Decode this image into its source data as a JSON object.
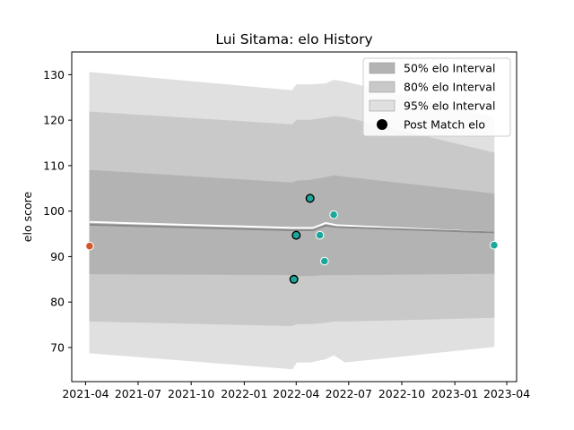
{
  "chart_data": {
    "type": "scatter",
    "title": "Lui Sitama: elo History",
    "xlabel": "",
    "ylabel": "elo score",
    "xlim": [
      "2021-03-08",
      "2023-04-18"
    ],
    "ylim": [
      62.5,
      135
    ],
    "x_ticks": [
      "2021-04",
      "2021-07",
      "2021-10",
      "2022-01",
      "2022-04",
      "2022-07",
      "2022-10",
      "2023-01",
      "2023-04"
    ],
    "y_ticks": [
      70,
      80,
      90,
      100,
      110,
      120,
      130
    ],
    "grid": false,
    "legend_position": "top-right",
    "legend": [
      {
        "label": "50% elo Interval",
        "color": "#b3b3b3"
      },
      {
        "label": "80% elo Interval",
        "color": "#c9c9c9"
      },
      {
        "label": "95% elo Interval",
        "color": "#e0e0e0"
      },
      {
        "label": "Post Match elo",
        "color": "#000000"
      }
    ],
    "bands": {
      "x": [
        "2021-04-08",
        "2022-03-25",
        "2022-04-02",
        "2022-04-25",
        "2022-05-22",
        "2022-06-05",
        "2022-06-25",
        "2023-03-10"
      ],
      "p95_upper": [
        130.5,
        126.5,
        127.8,
        127.8,
        128.0,
        128.8,
        128.4,
        120.6
      ],
      "p80_upper": [
        121.8,
        119.0,
        120.0,
        120.0,
        120.5,
        120.8,
        120.6,
        112.8
      ],
      "p50_upper": [
        109.0,
        106.2,
        106.6,
        106.8,
        107.4,
        107.8,
        107.5,
        103.8
      ],
      "p50_lower": [
        86.2,
        86.0,
        85.8,
        85.8,
        86.0,
        86.0,
        86.0,
        86.3
      ],
      "p80_lower": [
        75.8,
        74.8,
        75.2,
        75.2,
        75.5,
        75.8,
        75.8,
        76.6
      ],
      "p95_lower": [
        68.8,
        65.3,
        66.8,
        66.8,
        67.5,
        68.4,
        66.8,
        70.2
      ]
    },
    "mean_line": {
      "x": [
        "2021-04-08",
        "2022-03-25",
        "2022-04-10",
        "2022-04-30",
        "2022-05-22",
        "2022-06-10",
        "2023-03-10"
      ],
      "values": [
        97.0,
        95.8,
        95.8,
        95.8,
        96.8,
        96.5,
        95.3
      ]
    },
    "median_line": {
      "x": [
        "2021-04-08",
        "2022-03-25",
        "2022-04-10",
        "2022-04-30",
        "2022-05-22",
        "2022-06-10",
        "2023-03-10"
      ],
      "values": [
        97.6,
        96.3,
        96.3,
        96.3,
        97.4,
        96.9,
        95.3
      ]
    },
    "points": [
      {
        "x": "2021-04-08",
        "y": 92.3,
        "color": "#d2572d"
      },
      {
        "x": "2022-03-28",
        "y": 85.0,
        "color": "#1aa89a"
      },
      {
        "x": "2022-04-01",
        "y": 94.7,
        "color": "#1aa89a"
      },
      {
        "x": "2022-04-25",
        "y": 102.8,
        "color": "#1aa89a"
      },
      {
        "x": "2022-05-12",
        "y": 94.7,
        "color": "#1aa89a"
      },
      {
        "x": "2022-05-20",
        "y": 89.0,
        "color": "#1aa89a"
      },
      {
        "x": "2022-06-05",
        "y": 99.2,
        "color": "#1aa89a"
      },
      {
        "x": "2023-03-10",
        "y": 92.5,
        "color": "#1aa89a"
      }
    ],
    "outlined_points": [
      1,
      2,
      3
    ]
  }
}
